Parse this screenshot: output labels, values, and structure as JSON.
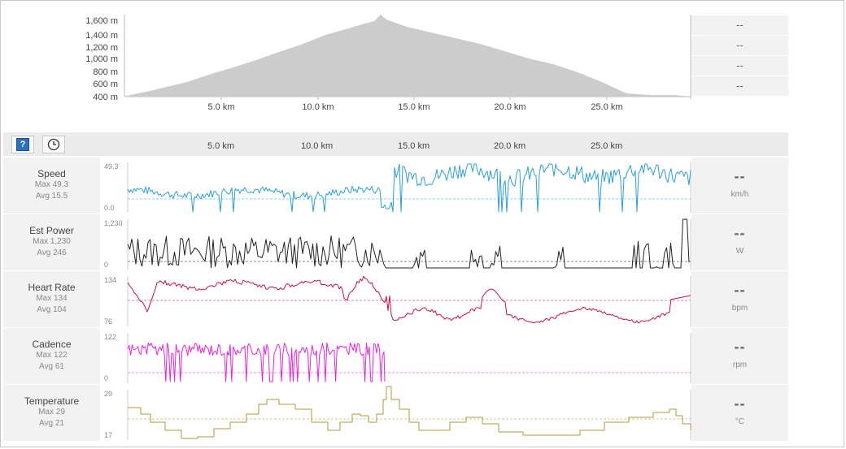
{
  "elevation": {
    "y_ticks": [
      "1,600 m",
      "1,400 m",
      "1,200 m",
      "1,000 m",
      "800 m",
      "600 m",
      "400 m"
    ],
    "x_ticks": [
      "5.0 km",
      "10.0 km",
      "15.0 km",
      "20.0 km",
      "25.0 km"
    ],
    "stats": [
      "--",
      "--",
      "--",
      "--"
    ],
    "fill_color": "#cccccc"
  },
  "toolbar": {
    "help_icon": "question-icon",
    "clock_icon": "clock-icon",
    "help_glyph": "?",
    "x_ticks": [
      "5.0 km",
      "10.0 km",
      "15.0 km",
      "20.0 km",
      "25.0 km"
    ]
  },
  "rows": [
    {
      "title": "Speed",
      "max": "Max 49.3",
      "avg": "Avg 15.5",
      "y_max": "49.3",
      "y_min": "0.0",
      "value": "--",
      "unit": "km/h",
      "color": "#2a9fd8"
    },
    {
      "title": "Est Power",
      "max": "Max 1,230",
      "avg": "Avg 246",
      "y_max": "1,230",
      "y_min": "0",
      "value": "--",
      "unit": "W",
      "color": "#222222"
    },
    {
      "title": "Heart Rate",
      "max": "Max 134",
      "avg": "Avg 104",
      "y_max": "134",
      "y_min": "76",
      "value": "--",
      "unit": "bpm",
      "color": "#cc1144"
    },
    {
      "title": "Cadence",
      "max": "Max 122",
      "avg": "Avg 61",
      "y_max": "122",
      "y_min": "0",
      "value": "--",
      "unit": "rpm",
      "color": "#ee22dd"
    },
    {
      "title": "Temperature",
      "max": "Max 29",
      "avg": "Avg 21",
      "y_max": "29",
      "y_min": "17",
      "value": "--",
      "unit": "°C",
      "color": "#b09a3a"
    }
  ]
}
